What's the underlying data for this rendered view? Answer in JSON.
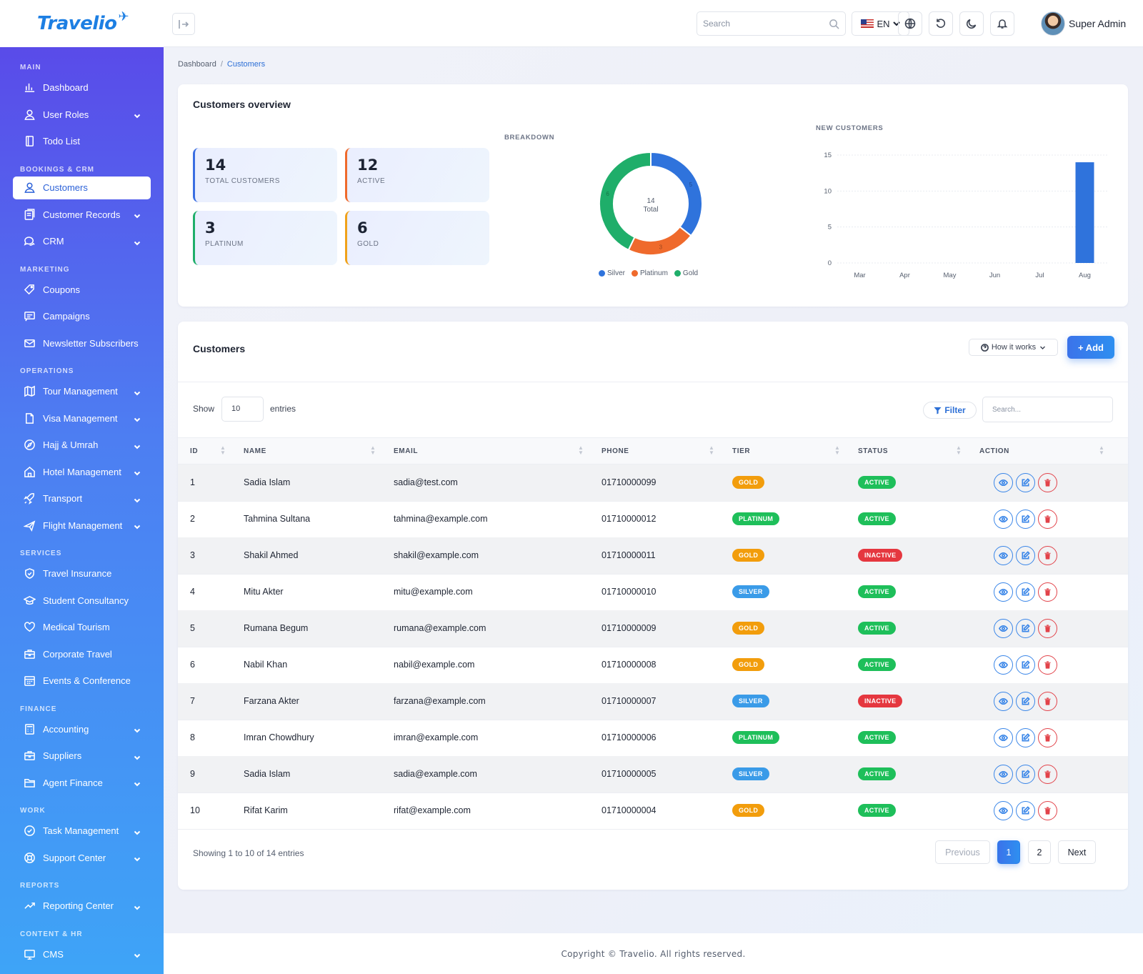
{
  "app": {
    "brand": "Travelio"
  },
  "sidebar": {
    "groups": [
      {
        "label": "MAIN",
        "items": [
          {
            "label": "Dashboard",
            "icon": "chart-icon",
            "chevron": false
          },
          {
            "label": "User Roles",
            "icon": "user-icon",
            "chevron": true
          },
          {
            "label": "Todo List",
            "icon": "todo-icon",
            "chevron": false
          }
        ]
      },
      {
        "label": "BOOKINGS & CRM",
        "items": [
          {
            "label": "Customers",
            "icon": "user-icon",
            "chevron": false,
            "active": true
          },
          {
            "label": "Customer Records",
            "icon": "records-icon",
            "chevron": true
          },
          {
            "label": "CRM",
            "icon": "chat-icon",
            "chevron": true
          }
        ]
      },
      {
        "label": "MARKETING",
        "items": [
          {
            "label": "Coupons",
            "icon": "tag-icon",
            "chevron": false
          },
          {
            "label": "Campaigns",
            "icon": "message-icon",
            "chevron": false
          },
          {
            "label": "Newsletter Subscribers",
            "icon": "mail-icon",
            "chevron": false
          }
        ]
      },
      {
        "label": "OPERATIONS",
        "items": [
          {
            "label": "Tour Management",
            "icon": "map-icon",
            "chevron": true
          },
          {
            "label": "Visa Management",
            "icon": "file-icon",
            "chevron": true
          },
          {
            "label": "Hajj & Umrah",
            "icon": "compass-icon",
            "chevron": true
          },
          {
            "label": "Hotel Management",
            "icon": "home-icon",
            "chevron": true
          },
          {
            "label": "Transport",
            "icon": "rocket-icon",
            "chevron": true
          },
          {
            "label": "Flight Management",
            "icon": "plane-icon",
            "chevron": true
          }
        ]
      },
      {
        "label": "SERVICES",
        "items": [
          {
            "label": "Travel Insurance",
            "icon": "shield-icon",
            "chevron": false
          },
          {
            "label": "Student Consultancy",
            "icon": "graduation-icon",
            "chevron": false
          },
          {
            "label": "Medical Tourism",
            "icon": "heart-icon",
            "chevron": false
          },
          {
            "label": "Corporate Travel",
            "icon": "briefcase-icon",
            "chevron": false
          },
          {
            "label": "Events & Conference",
            "icon": "calendar-icon",
            "chevron": false
          }
        ]
      },
      {
        "label": "FINANCE",
        "items": [
          {
            "label": "Accounting",
            "icon": "calculator-icon",
            "chevron": true
          },
          {
            "label": "Suppliers",
            "icon": "briefcase-icon",
            "chevron": true
          },
          {
            "label": "Agent Finance",
            "icon": "folder-icon",
            "chevron": true
          }
        ]
      },
      {
        "label": "WORK",
        "items": [
          {
            "label": "Task Management",
            "icon": "check-circle-icon",
            "chevron": true
          },
          {
            "label": "Support Center",
            "icon": "lifebuoy-icon",
            "chevron": true
          }
        ]
      },
      {
        "label": "REPORTS",
        "items": [
          {
            "label": "Reporting Center",
            "icon": "trend-icon",
            "chevron": true
          }
        ]
      },
      {
        "label": "CONTENT & HR",
        "items": [
          {
            "label": "CMS",
            "icon": "monitor-icon",
            "chevron": true
          }
        ]
      }
    ]
  },
  "topbar": {
    "search_placeholder": "Search",
    "lang": "EN",
    "user_name": "Super Admin"
  },
  "breadcrumb": {
    "parent": "Dashboard",
    "sep": "/",
    "current": "Customers"
  },
  "overview": {
    "title": "Customers overview",
    "stats": [
      {
        "value": "14",
        "label": "TOTAL CUSTOMERS",
        "accent": "#3a6ee2"
      },
      {
        "value": "12",
        "label": "ACTIVE",
        "accent": "#ef6a2c"
      },
      {
        "value": "3",
        "label": "PLATINUM",
        "accent": "#1fae6a"
      },
      {
        "value": "6",
        "label": "GOLD",
        "accent": "#f0a21a"
      }
    ],
    "breakdown_label": "BREAKDOWN",
    "new_customers_label": "NEW CUSTOMERS"
  },
  "chart_data": [
    {
      "type": "pie",
      "title": "BREAKDOWN",
      "center_value": "14",
      "center_label": "Total",
      "series": [
        {
          "name": "Silver",
          "value": 5,
          "color": "#2f73dc"
        },
        {
          "name": "Platinum",
          "value": 3,
          "color": "#ef6a2c"
        },
        {
          "name": "Gold",
          "value": 6,
          "color": "#1fae6a"
        }
      ]
    },
    {
      "type": "bar",
      "title": "NEW CUSTOMERS",
      "categories": [
        "Mar",
        "Apr",
        "May",
        "Jun",
        "Jul",
        "Aug"
      ],
      "values": [
        0,
        0,
        0,
        0,
        0,
        14
      ],
      "ylim": [
        0,
        15
      ],
      "yticks": [
        "0",
        "5",
        "10",
        "15"
      ],
      "grid": true,
      "color": "#2f73dc"
    }
  ],
  "customers": {
    "title": "Customers",
    "how_label": "How it works",
    "add_label": "+ Add",
    "show_label": "Show",
    "page_size": "10",
    "entries_label": "entries",
    "filter_label": "Filter",
    "search_placeholder": "Search...",
    "columns": [
      "ID",
      "NAME",
      "EMAIL",
      "PHONE",
      "TIER",
      "STATUS",
      "ACTION"
    ],
    "rows": [
      {
        "id": "1",
        "name": "Sadia Islam",
        "email": "sadia@test.com",
        "phone": "01710000099",
        "tier": "GOLD",
        "status": "ACTIVE"
      },
      {
        "id": "2",
        "name": "Tahmina Sultana",
        "email": "tahmina@example.com",
        "phone": "01710000012",
        "tier": "PLATINUM",
        "status": "ACTIVE"
      },
      {
        "id": "3",
        "name": "Shakil Ahmed",
        "email": "shakil@example.com",
        "phone": "01710000011",
        "tier": "GOLD",
        "status": "INACTIVE"
      },
      {
        "id": "4",
        "name": "Mitu Akter",
        "email": "mitu@example.com",
        "phone": "01710000010",
        "tier": "SILVER",
        "status": "ACTIVE"
      },
      {
        "id": "5",
        "name": "Rumana Begum",
        "email": "rumana@example.com",
        "phone": "01710000009",
        "tier": "GOLD",
        "status": "ACTIVE"
      },
      {
        "id": "6",
        "name": "Nabil Khan",
        "email": "nabil@example.com",
        "phone": "01710000008",
        "tier": "GOLD",
        "status": "ACTIVE"
      },
      {
        "id": "7",
        "name": "Farzana Akter",
        "email": "farzana@example.com",
        "phone": "01710000007",
        "tier": "SILVER",
        "status": "INACTIVE"
      },
      {
        "id": "8",
        "name": "Imran Chowdhury",
        "email": "imran@example.com",
        "phone": "01710000006",
        "tier": "PLATINUM",
        "status": "ACTIVE"
      },
      {
        "id": "9",
        "name": "Sadia Islam",
        "email": "sadia@example.com",
        "phone": "01710000005",
        "tier": "SILVER",
        "status": "ACTIVE"
      },
      {
        "id": "10",
        "name": "Rifat Karim",
        "email": "rifat@example.com",
        "phone": "01710000004",
        "tier": "GOLD",
        "status": "ACTIVE"
      }
    ],
    "tier_colors": {
      "GOLD": "#f29d0c",
      "PLATINUM": "#1ebf5a",
      "SILVER": "#3a9be8"
    },
    "status_colors": {
      "ACTIVE": "#1ebf5a",
      "INACTIVE": "#e5373f"
    },
    "showing_text": "Showing 1 to 10 of 14 entries",
    "pagination": {
      "previous": "Previous",
      "pages": [
        "1",
        "2"
      ],
      "current": "1",
      "next": "Next"
    }
  },
  "footer": {
    "text": "Copyright © Travelio. All rights reserved."
  }
}
